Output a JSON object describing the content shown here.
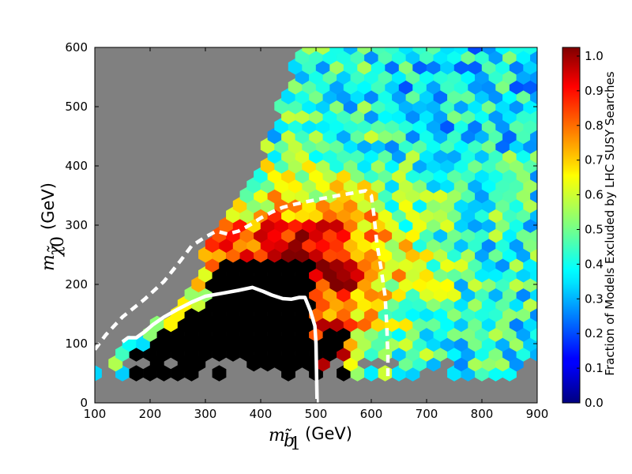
{
  "chart_data": {
    "type": "heatmap",
    "subtype": "hexbin",
    "xlim": [
      100,
      900
    ],
    "ylim": [
      0,
      600
    ],
    "xticks": [
      "100",
      "200",
      "300",
      "400",
      "500",
      "600",
      "700",
      "800",
      "900"
    ],
    "yticks": [
      "0",
      "100",
      "200",
      "300",
      "400",
      "500",
      "600"
    ],
    "xlabel": "m_{b̃1} (GeV)",
    "ylabel": "m_{χ̃0} (GeV)",
    "colorbar": {
      "label": "Fraction of Models Excluded by LHC SUSY Searches",
      "ticks": [
        "0.0",
        "0.1",
        "0.2",
        "0.3",
        "0.4",
        "0.5",
        "0.6",
        "0.7",
        "0.8",
        "0.9",
        "1.0"
      ],
      "range": [
        0,
        1
      ],
      "colormap": "jet"
    },
    "background_color": "#808080",
    "black_color": "#000000",
    "exclusion_contours": [
      {
        "style": "solid-white",
        "points": [
          [
            150,
            103
          ],
          [
            160,
            110
          ],
          [
            175,
            110
          ],
          [
            190,
            120
          ],
          [
            205,
            132
          ],
          [
            225,
            145
          ],
          [
            250,
            158
          ],
          [
            275,
            170
          ],
          [
            300,
            180
          ],
          [
            330,
            185
          ],
          [
            360,
            190
          ],
          [
            385,
            195
          ],
          [
            405,
            188
          ],
          [
            420,
            182
          ],
          [
            440,
            176
          ],
          [
            455,
            175
          ],
          [
            470,
            178
          ],
          [
            480,
            178
          ],
          [
            490,
            155
          ],
          [
            498,
            130
          ],
          [
            500,
            100
          ],
          [
            502,
            0
          ]
        ]
      },
      {
        "style": "dashed-white",
        "points": [
          [
            100,
            90
          ],
          [
            120,
            115
          ],
          [
            150,
            145
          ],
          [
            190,
            175
          ],
          [
            225,
            205
          ],
          [
            255,
            240
          ],
          [
            275,
            265
          ],
          [
            300,
            280
          ],
          [
            320,
            290
          ],
          [
            340,
            285
          ],
          [
            360,
            290
          ],
          [
            380,
            300
          ],
          [
            400,
            312
          ],
          [
            420,
            322
          ],
          [
            440,
            330
          ],
          [
            460,
            335
          ],
          [
            500,
            343
          ],
          [
            540,
            350
          ],
          [
            590,
            358
          ],
          [
            600,
            350
          ],
          [
            605,
            315
          ],
          [
            610,
            270
          ],
          [
            618,
            225
          ],
          [
            625,
            180
          ],
          [
            628,
            130
          ],
          [
            630,
            80
          ],
          [
            630,
            40
          ]
        ]
      }
    ],
    "grid_region": {
      "x_min": 100,
      "x_max": 900,
      "y_min": 50,
      "y_max": 600
    },
    "hex_size_gev": {
      "dx": 25,
      "dy": 16.7
    }
  }
}
